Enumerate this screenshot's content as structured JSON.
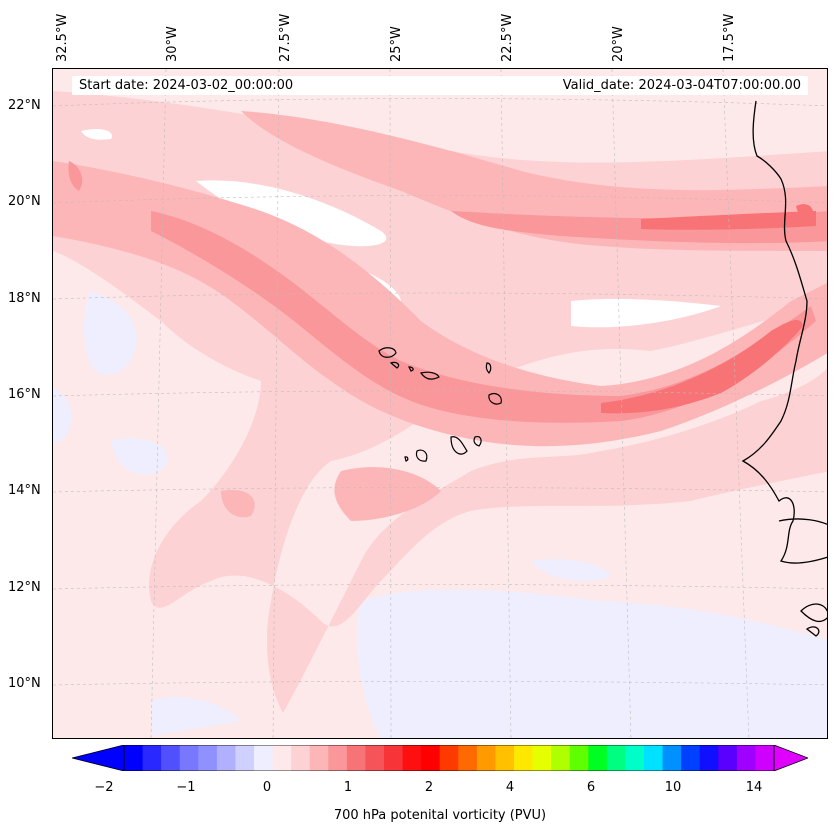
{
  "map": {
    "start_date": "Start date: 2024-03-02_00:00:00",
    "valid_date": "Valid_date: 2024-03-04T07:00:00.00",
    "lon_labels": [
      "32.5°W",
      "30°W",
      "27.5°W",
      "25°W",
      "22.5°W",
      "20°W",
      "17.5°W"
    ],
    "lat_labels": [
      "22°N",
      "20°N",
      "18°N",
      "16°N",
      "14°N",
      "12°N",
      "10°N"
    ],
    "colorbar": {
      "label": "700 hPa potenital vorticity (PVU)",
      "ticks": [
        "−2",
        "−1",
        "0",
        "1",
        "2",
        "4",
        "6",
        "10",
        "14"
      ],
      "colors": [
        "#0000ff",
        "#2828ff",
        "#5050ff",
        "#7878ff",
        "#9090ff",
        "#b0b0ff",
        "#d0d0ff",
        "#eeeeff",
        "#fde9ea",
        "#fcd2d4",
        "#fcb6b8",
        "#f9979a",
        "#f77376",
        "#f55458",
        "#f73538",
        "#ff1010",
        "#ff0000",
        "#ff3a00",
        "#ff6a00",
        "#ff9a00",
        "#ffc000",
        "#ffe800",
        "#e6ff00",
        "#b0ff00",
        "#60ff00",
        "#00ff20",
        "#00ff80",
        "#00ffc8",
        "#00e0ff",
        "#0090ff",
        "#0040ff",
        "#1010ff",
        "#5a00ff",
        "#a000ff",
        "#d000ff"
      ],
      "under_color": "#0000ff",
      "over_color": "#e000ff"
    },
    "fill_colors": {
      "background": "#fde9ea",
      "light": "#fcd2d4",
      "mid": "#fcb6b8",
      "strong": "#f9979a",
      "core": "#f77376",
      "blue": "#eeeeff",
      "white": "#ffffff"
    }
  }
}
